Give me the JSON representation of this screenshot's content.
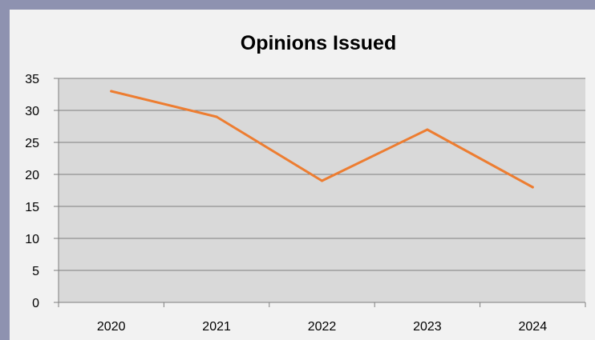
{
  "chart_data": {
    "type": "line",
    "title": "Opinions Issued",
    "xlabel": "",
    "ylabel": "",
    "categories": [
      "2020",
      "2021",
      "2022",
      "2023",
      "2024"
    ],
    "series": [
      {
        "values": [
          33,
          29,
          19,
          27,
          18
        ]
      }
    ],
    "ylim": [
      0,
      35
    ],
    "yticks": [
      "0",
      "5",
      "10",
      "15",
      "20",
      "25",
      "30",
      "35"
    ],
    "grid": true,
    "legend": "none",
    "colors": {
      "line": "#ed7d31",
      "plot_background": "#d9d9d9",
      "chart_background": "#f2f2f2",
      "outer_background": "#8e92b0",
      "gridline": "#7f7f7f"
    }
  }
}
